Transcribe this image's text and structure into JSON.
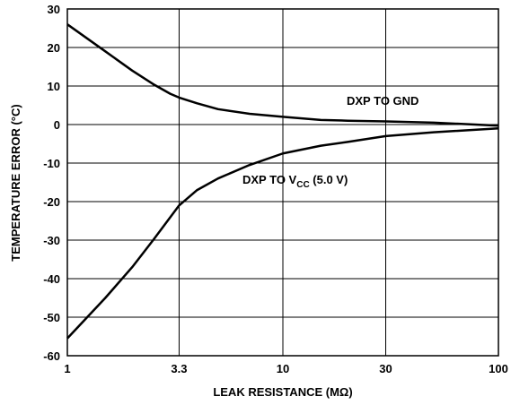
{
  "chart_data": {
    "type": "line",
    "xlabel": "LEAK RESISTANCE (MΩ)",
    "ylabel": "TEMPERATURE ERROR (°C)",
    "xscale": "log",
    "xlim": [
      1,
      100
    ],
    "xticks": [
      1,
      3.3,
      10,
      30,
      100
    ],
    "ylim": [
      -60,
      30
    ],
    "yticks": [
      -60,
      -50,
      -40,
      -30,
      -20,
      -10,
      0,
      10,
      20,
      30
    ],
    "grid": true,
    "series": [
      {
        "name": "DXP TO GND",
        "color": "#000000",
        "x": [
          1,
          1.5,
          2,
          2.5,
          3,
          3.3,
          4,
          5,
          7,
          10,
          15,
          20,
          30,
          50,
          100
        ],
        "values": [
          26,
          19,
          14,
          10.5,
          8,
          7,
          5.5,
          4,
          2.8,
          2,
          1.2,
          1,
          0.8,
          0.5,
          -0.3
        ]
      },
      {
        "name": "DXP TO V",
        "name_subscript": "CC",
        "name_suffix": " (5.0 V)",
        "color": "#000000",
        "x": [
          1,
          1.5,
          2,
          2.5,
          3.3,
          4,
          5,
          7,
          10,
          15,
          20,
          30,
          50,
          100
        ],
        "values": [
          -55.5,
          -45,
          -37,
          -30,
          -21,
          -17,
          -14,
          -10.5,
          -7.5,
          -5.5,
          -4.5,
          -3,
          -2,
          -1
        ]
      }
    ]
  }
}
